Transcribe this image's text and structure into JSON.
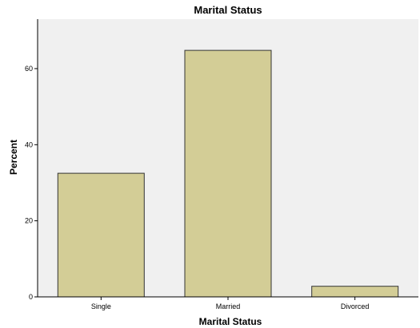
{
  "chart_data": {
    "type": "bar",
    "title": "Marital Status",
    "xlabel": "Marital Status",
    "ylabel": "Percent",
    "categories": [
      "Single",
      "Married",
      "Divorced"
    ],
    "values": [
      32.5,
      64.8,
      2.8
    ],
    "ylim": [
      0,
      73
    ],
    "yticks": [
      0,
      20,
      40,
      60
    ],
    "grid": false,
    "legend": "none",
    "colors": {
      "bar_fill": "#d3cd96",
      "bar_stroke": "#333333",
      "plot_background": "#f0f0f0",
      "axis": "#000000"
    }
  }
}
